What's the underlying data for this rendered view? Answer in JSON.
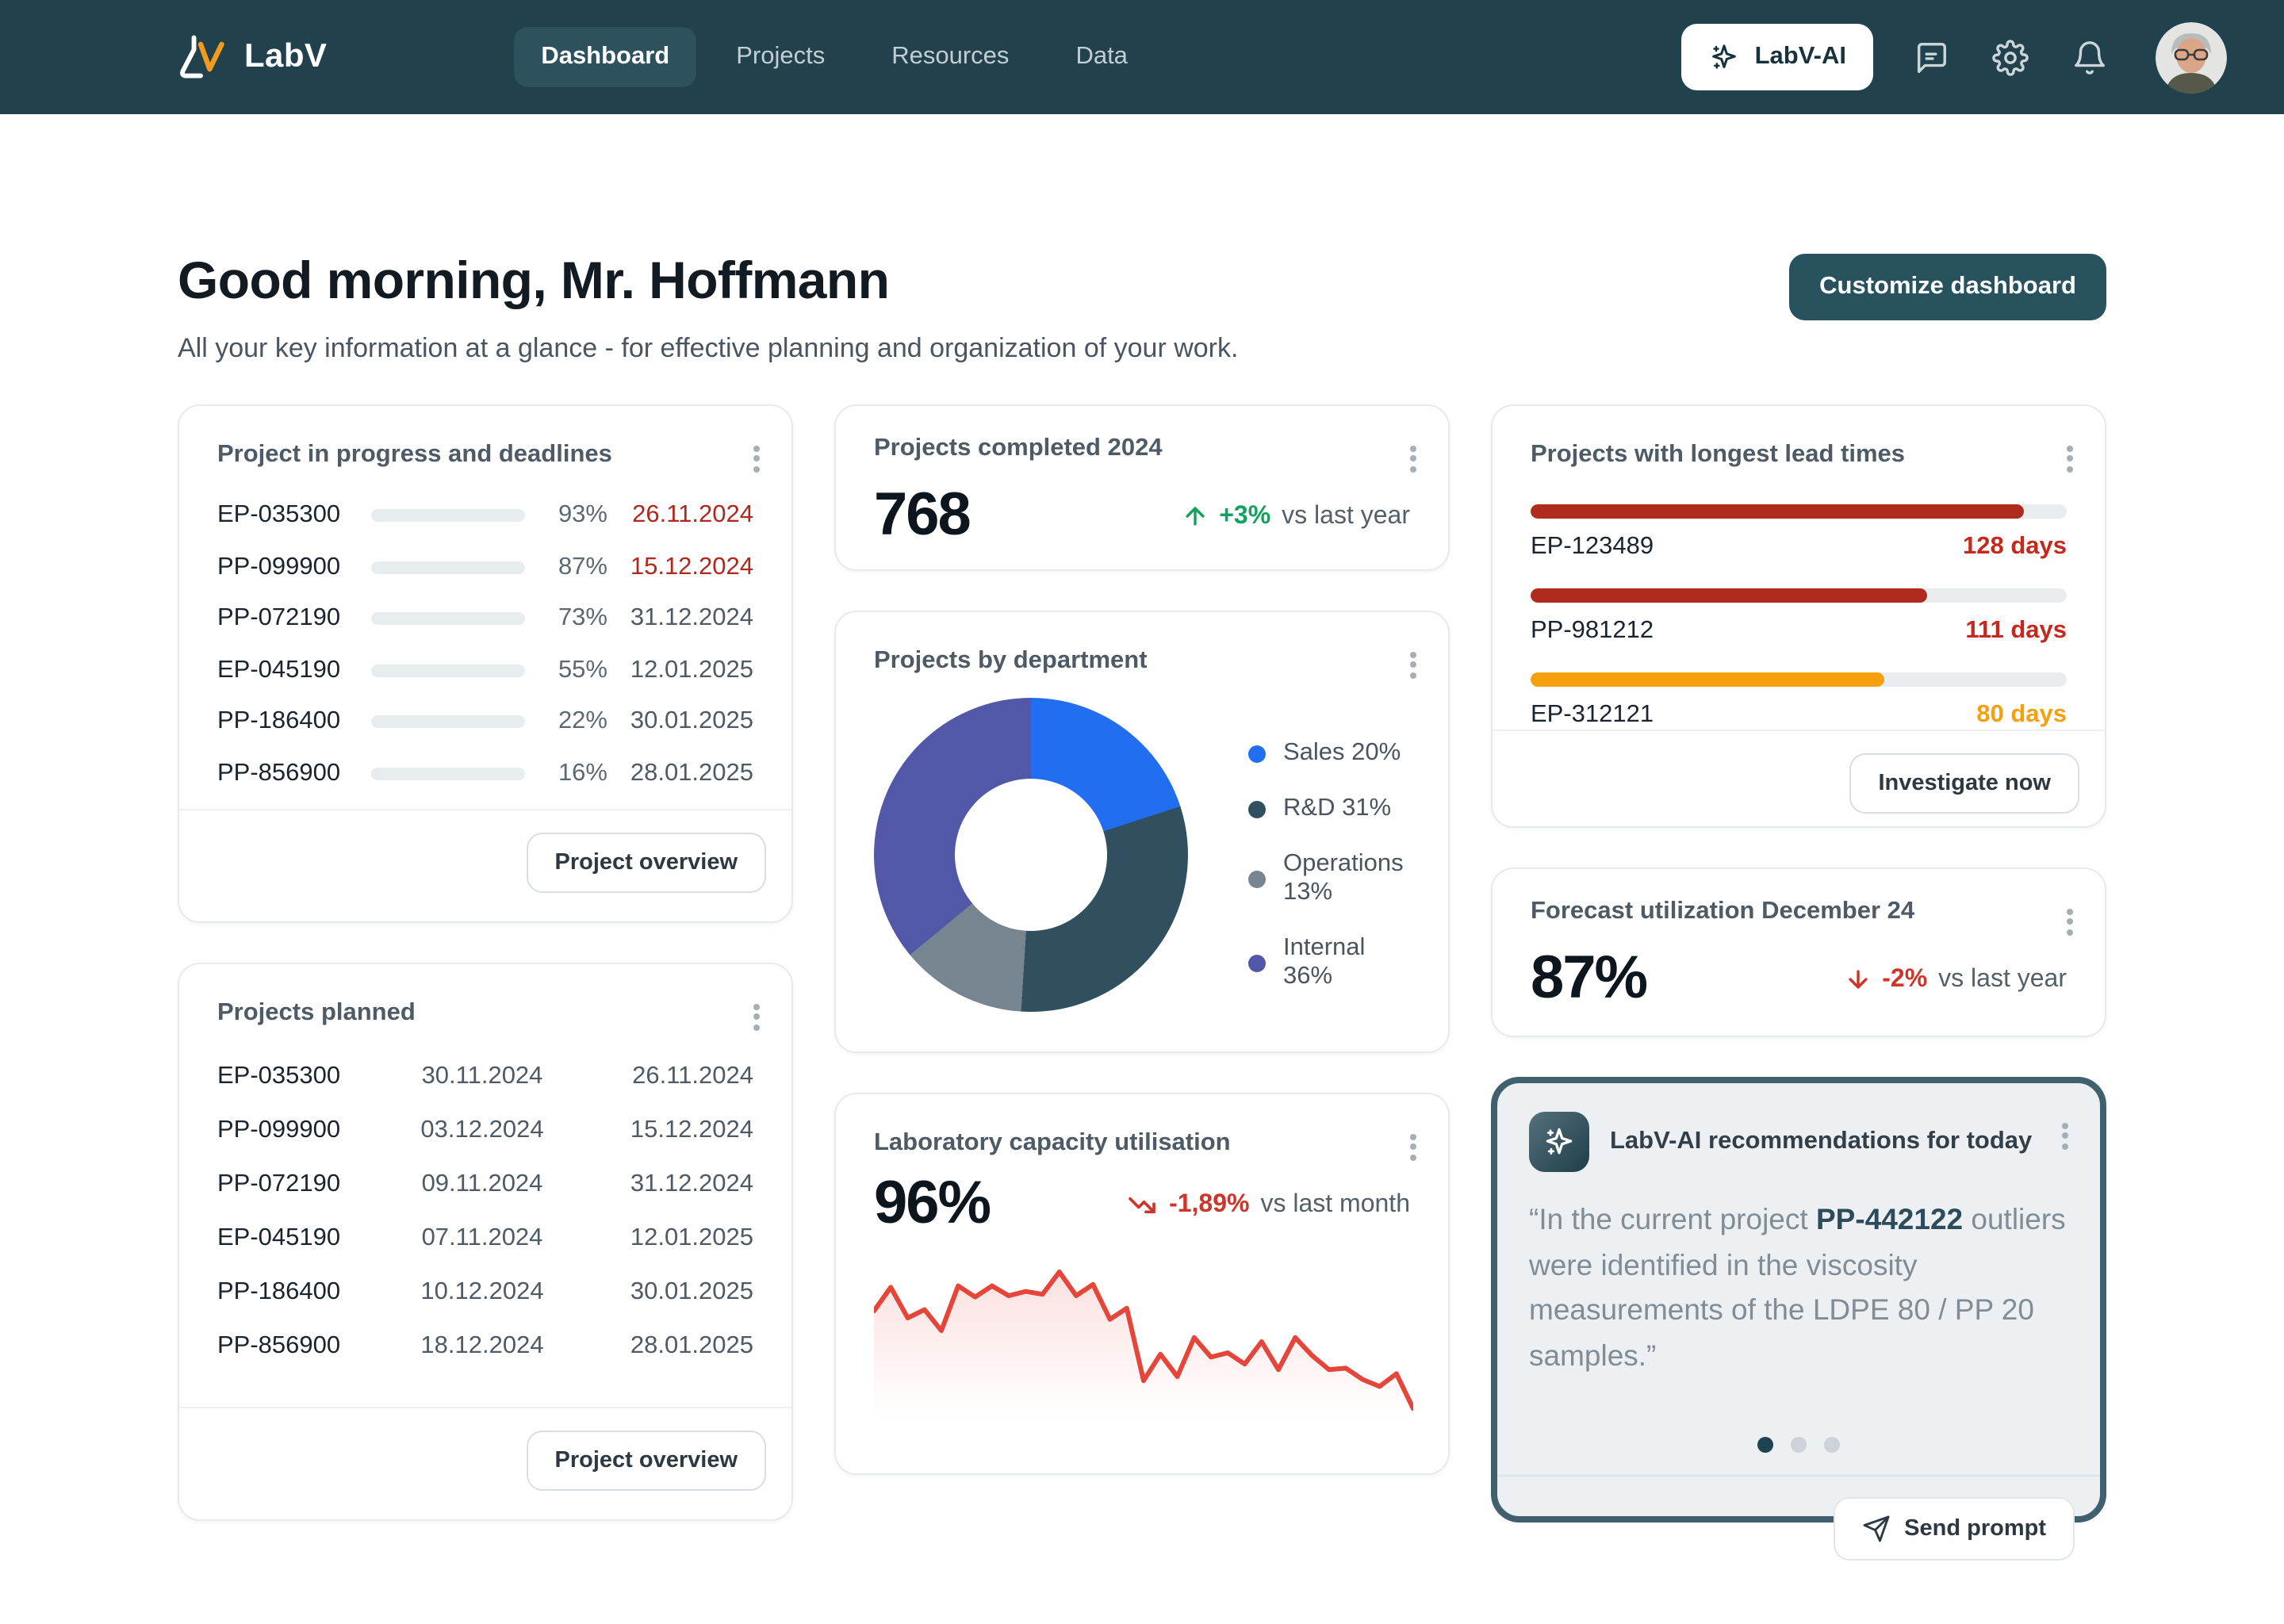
{
  "nav": {
    "brand": "LabV",
    "tabs": [
      {
        "label": "Dashboard",
        "active": true
      },
      {
        "label": "Projects",
        "active": false
      },
      {
        "label": "Resources",
        "active": false
      },
      {
        "label": "Data",
        "active": false
      }
    ],
    "ai_button": "LabV-AI"
  },
  "header": {
    "greeting": "Good morning, Mr. Hoffmann",
    "subtitle": "All your key information at a glance - for effective planning and organization of your work.",
    "customize_button": "Customize dashboard"
  },
  "cards": {
    "progress": {
      "title": "Project in progress and deadlines",
      "rows": [
        {
          "id": "EP-035300",
          "percent": 93,
          "date": "26.11.2024",
          "urgent": true,
          "color": "green"
        },
        {
          "id": "PP-099900",
          "percent": 87,
          "date": "15.12.2024",
          "urgent": true,
          "color": "green"
        },
        {
          "id": "PP-072190",
          "percent": 73,
          "date": "31.12.2024",
          "urgent": false,
          "color": "teal"
        },
        {
          "id": "EP-045190",
          "percent": 55,
          "date": "12.01.2025",
          "urgent": false,
          "color": "teal"
        },
        {
          "id": "PP-186400",
          "percent": 22,
          "date": "30.01.2025",
          "urgent": false,
          "color": "teal"
        },
        {
          "id": "PP-856900",
          "percent": 16,
          "date": "28.01.2025",
          "urgent": false,
          "color": "teal"
        }
      ],
      "footer_button": "Project overview"
    },
    "planned": {
      "title": "Projects planned",
      "rows": [
        {
          "id": "EP-035300",
          "start": "30.11.2024",
          "end": "26.11.2024"
        },
        {
          "id": "PP-099900",
          "start": "03.12.2024",
          "end": "15.12.2024"
        },
        {
          "id": "PP-072190",
          "start": "09.11.2024",
          "end": "31.12.2024"
        },
        {
          "id": "EP-045190",
          "start": "07.11.2024",
          "end": "12.01.2025"
        },
        {
          "id": "PP-186400",
          "start": "10.12.2024",
          "end": "30.01.2025"
        },
        {
          "id": "PP-856900",
          "start": "18.12.2024",
          "end": "28.01.2025"
        }
      ],
      "footer_button": "Project overview"
    },
    "completed": {
      "title": "Projects completed 2024",
      "value": "768",
      "delta": "+3%",
      "delta_label": "vs last year",
      "trend": "up"
    },
    "department": {
      "title": "Projects by department"
    },
    "capacity": {
      "title": "Laboratory capacity utilisation",
      "value": "96%",
      "delta": "-1,89%",
      "delta_label": "vs last month",
      "trend": "down"
    },
    "lead_times": {
      "title": "Projects with longest lead times",
      "rows": [
        {
          "id": "EP-123489",
          "days": "128 days",
          "bar_percent": 92,
          "bar_color": "#b02a1e",
          "text_color": "#c6281c"
        },
        {
          "id": "PP-981212",
          "days": "111 days",
          "bar_percent": 74,
          "bar_color": "#b02a1e",
          "text_color": "#c6281c"
        },
        {
          "id": "EP-312121",
          "days": "80 days",
          "bar_percent": 66,
          "bar_color": "#f5a00c",
          "text_color": "#f5a00c"
        }
      ],
      "footer_button": "Investigate now"
    },
    "forecast": {
      "title": "Forecast utilization December 24",
      "value": "87%",
      "delta": "-2%",
      "delta_label": "vs last year",
      "trend": "down"
    },
    "ai": {
      "title": "LabV-AI recommendations for today",
      "quote_prefix": "“In the current project ",
      "quote_link": "PP-442122",
      "quote_suffix": " outliers were identified in the viscosity measurements of the LDPE 80 / PP 20 samples.”",
      "dots": 3,
      "active_dot": 0,
      "footer_button": "Send prompt"
    }
  },
  "icons": {
    "brand_logo": "labv-flask-logo",
    "nav": [
      "chat-icon",
      "gear-icon",
      "bell-icon"
    ],
    "sparkle": "sparkle-icon",
    "send": "paper-plane-icon",
    "kebab": "kebab-menu-icon"
  },
  "colors": {
    "nav_bg": "#21414d",
    "accent_teal": "#29525f",
    "green": "#1fae61",
    "bar_teal": "#2c4a59",
    "red": "#cf342a",
    "date_red": "#b2271d",
    "orange": "#f5a00c",
    "spark_red": "#e64539"
  },
  "chart_data": [
    {
      "id": "projects_by_department",
      "type": "pie",
      "donut": true,
      "title": "Projects by department",
      "labels": [
        "Sales",
        "R&D",
        "Operations",
        "Internal"
      ],
      "values": [
        20,
        31,
        13,
        36
      ],
      "unit": "%",
      "colors": [
        "#216ef0",
        "#30505f",
        "#76858f",
        "#5357a8"
      ],
      "legend_position": "right",
      "start_angle_deg": 0,
      "direction": "clockwise"
    },
    {
      "id": "laboratory_capacity_utilisation",
      "type": "area",
      "title": "Laboratory capacity utilisation",
      "unit": "%",
      "x_axis": "time, unlabeled equal intervals (last month)",
      "values": [
        72,
        89,
        67,
        73,
        58,
        90,
        82,
        90,
        83,
        86,
        84,
        100,
        83,
        91,
        66,
        74,
        22,
        41,
        25,
        53,
        39,
        42,
        34,
        50,
        30,
        53,
        40,
        30,
        31,
        23,
        18,
        27,
        2
      ],
      "ylim": [
        0,
        100
      ],
      "line_color": "#e64539",
      "fill": "linear-gradient red to transparent",
      "grid": false,
      "axes_hidden": true
    }
  ]
}
